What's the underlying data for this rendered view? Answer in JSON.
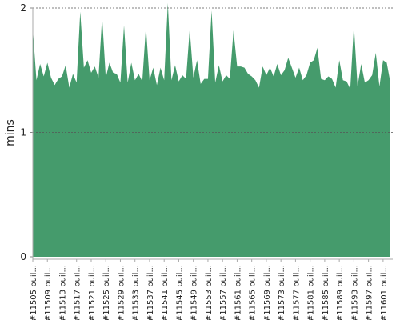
{
  "chart_data": {
    "type": "area",
    "y_label": "mins",
    "color": "#459b6c",
    "ylim": [
      0,
      2
    ],
    "yticks": [
      0,
      1,
      2
    ],
    "grid": true,
    "categories": [
      "#11505 buil...",
      null,
      null,
      null,
      "#11509 buil...",
      null,
      null,
      null,
      "#11513 buil...",
      null,
      null,
      null,
      "#11517 buil...",
      null,
      null,
      null,
      "#11521 buil...",
      null,
      null,
      null,
      "#11525 buil...",
      null,
      null,
      null,
      "#11529 buil...",
      null,
      null,
      null,
      "#11533 buil...",
      null,
      null,
      null,
      "#11537 buil...",
      null,
      null,
      null,
      "#11541 buil...",
      null,
      null,
      null,
      "#11545 buil...",
      null,
      null,
      null,
      "#11549 buil...",
      null,
      null,
      null,
      "#11553 buil...",
      null,
      null,
      null,
      "#11557 buil...",
      null,
      null,
      null,
      "#11561 buil...",
      null,
      null,
      null,
      "#11565 buil...",
      null,
      null,
      null,
      "#11569 buil...",
      null,
      null,
      null,
      "#11573 buil...",
      null,
      null,
      null,
      "#11577 buil...",
      null,
      null,
      null,
      "#11581 buil...",
      null,
      null,
      null,
      "#11585 buil...",
      null,
      null,
      null,
      "#11589 buil...",
      null,
      null,
      null,
      "#11593 buil...",
      null,
      null,
      null,
      "#11597 buil...",
      null,
      null,
      null,
      "#11601 buil...",
      null,
      null
    ],
    "values": [
      1.83,
      1.42,
      1.55,
      1.45,
      1.56,
      1.44,
      1.38,
      1.43,
      1.45,
      1.54,
      1.36,
      1.47,
      1.4,
      1.97,
      1.52,
      1.58,
      1.48,
      1.53,
      1.44,
      1.93,
      1.44,
      1.56,
      1.48,
      1.47,
      1.4,
      1.86,
      1.4,
      1.56,
      1.42,
      1.47,
      1.41,
      1.85,
      1.42,
      1.52,
      1.38,
      1.52,
      1.42,
      2.04,
      1.42,
      1.54,
      1.41,
      1.46,
      1.43,
      1.83,
      1.44,
      1.58,
      1.39,
      1.43,
      1.43,
      1.98,
      1.4,
      1.54,
      1.41,
      1.46,
      1.43,
      1.82,
      1.53,
      1.53,
      1.52,
      1.47,
      1.45,
      1.42,
      1.36,
      1.53,
      1.46,
      1.52,
      1.45,
      1.55,
      1.46,
      1.5,
      1.6,
      1.52,
      1.44,
      1.52,
      1.42,
      1.46,
      1.56,
      1.58,
      1.68,
      1.43,
      1.42,
      1.45,
      1.43,
      1.36,
      1.58,
      1.42,
      1.41,
      1.35,
      1.86,
      1.37,
      1.55,
      1.4,
      1.42,
      1.46,
      1.64,
      1.37,
      1.58,
      1.56,
      1.4
    ]
  }
}
